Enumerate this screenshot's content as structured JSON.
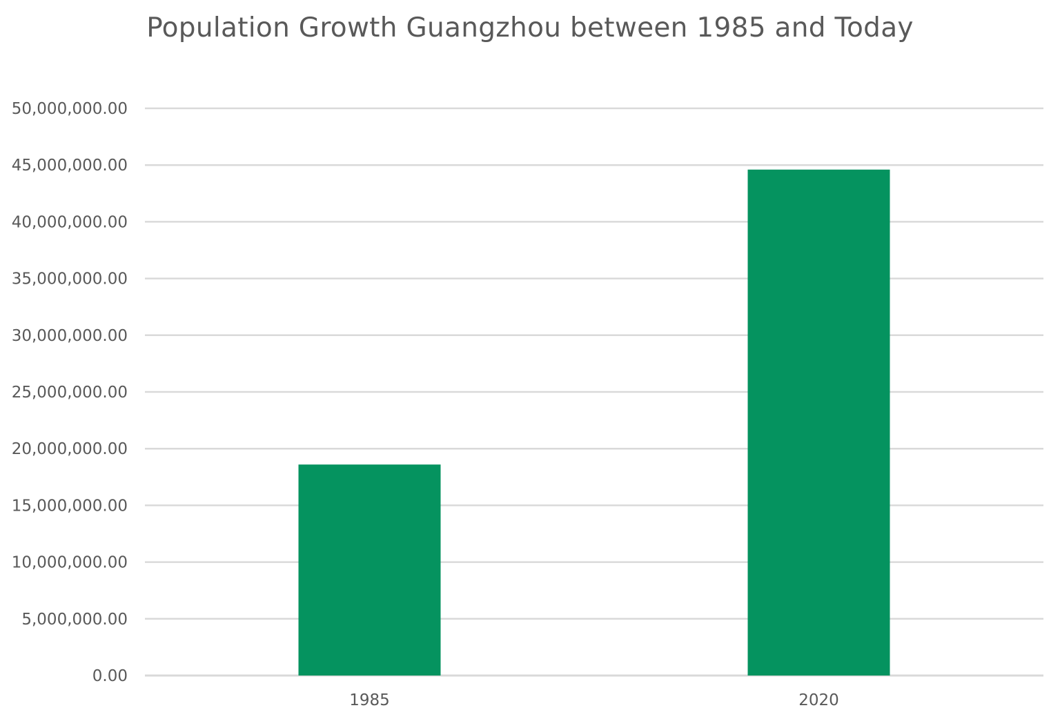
{
  "chart_data": {
    "type": "bar",
    "title": "Population Growth Guangzhou  between 1985 and Today",
    "categories": [
      "1985",
      "2020"
    ],
    "series": [
      {
        "values": [
          18600000,
          44600000
        ],
        "color": "#05935F"
      }
    ],
    "ylim": [
      0,
      50000000
    ],
    "y_ticks": [
      0,
      5000000,
      10000000,
      15000000,
      20000000,
      25000000,
      30000000,
      35000000,
      40000000,
      45000000,
      50000000
    ],
    "y_tick_labels": [
      "0.00",
      "5,000,000.00",
      "10,000,000.00",
      "15,000,000.00",
      "20,000,000.00",
      "25,000,000.00",
      "30,000,000.00",
      "35,000,000.00",
      "40,000,000.00",
      "45,000,000.00",
      "50,000,000.00"
    ],
    "grid": true,
    "legend": "none",
    "gridline_color": "#D9D9D9",
    "text_color": "#595959"
  }
}
